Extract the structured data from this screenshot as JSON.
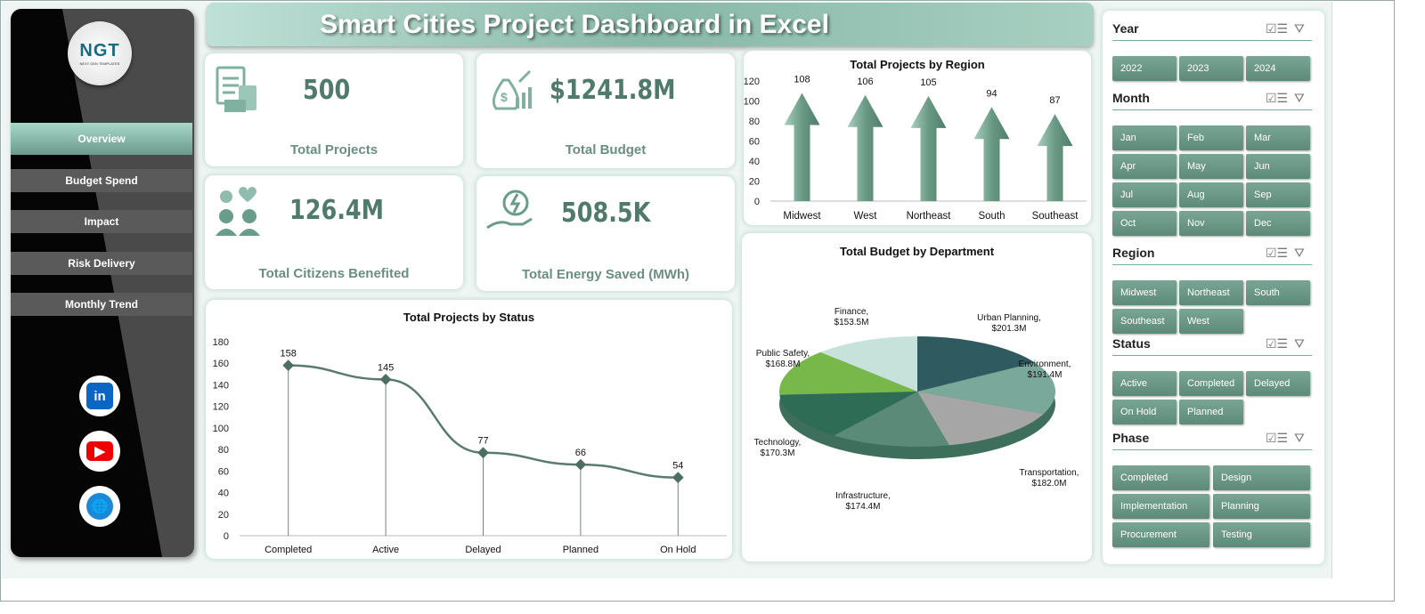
{
  "title": "Smart Cities Project Dashboard in Excel",
  "logo": {
    "text": "NGT",
    "sub": "NEXT GEN TEMPLATES"
  },
  "nav": [
    {
      "label": "Overview",
      "active": true
    },
    {
      "label": "Budget Spend"
    },
    {
      "label": "Impact"
    },
    {
      "label": "Risk Delivery"
    },
    {
      "label": "Monthly Trend"
    }
  ],
  "social": [
    {
      "icon": "linkedin-icon",
      "text": "in",
      "color": "#0a66c2"
    },
    {
      "icon": "youtube-icon",
      "text": "▶",
      "color": "#e00"
    },
    {
      "icon": "globe-icon",
      "text": "🌐",
      "color": "#1a8ad8"
    }
  ],
  "kpis": [
    {
      "value": "500",
      "label": "Total Projects",
      "icon": "clipboard-calculator-icon"
    },
    {
      "value": "$1241.8M",
      "label": "Total Budget",
      "icon": "money-bag-growth-icon"
    },
    {
      "value": "126.4M",
      "label": "Total Citizens Benefited",
      "icon": "citizens-icon"
    },
    {
      "value": "508.5K",
      "label": "Total Energy Saved (MWh)",
      "icon": "energy-hand-icon"
    }
  ],
  "chart_data": [
    {
      "type": "bar",
      "title": "Total Projects by Region",
      "categories": [
        "Midwest",
        "West",
        "Northeast",
        "South",
        "Southeast"
      ],
      "values": [
        108,
        106,
        105,
        94,
        87
      ],
      "ylim": [
        0,
        120
      ],
      "yticks": [
        0,
        20,
        40,
        60,
        80,
        100,
        120
      ],
      "mark": "arrow",
      "color": "#6a9a84"
    },
    {
      "type": "line",
      "title": "Total Projects by Status",
      "categories": [
        "Completed",
        "Active",
        "Delayed",
        "Planned",
        "On Hold"
      ],
      "values": [
        158,
        145,
        77,
        66,
        54
      ],
      "ylim": [
        0,
        180
      ],
      "yticks": [
        0,
        20,
        40,
        60,
        80,
        100,
        120,
        140,
        160,
        180
      ],
      "color": "#5a7a6e"
    },
    {
      "type": "pie",
      "title": "Total Budget by Department",
      "categories": [
        "Urban Planning",
        "Environment",
        "Transportation",
        "Infrastructure",
        "Technology",
        "Public Safety",
        "Finance"
      ],
      "values": [
        201.3,
        191.4,
        182.0,
        174.4,
        170.3,
        168.8,
        153.5
      ],
      "labels": [
        "$201.3M",
        "$191.4M",
        "$182.0M",
        "$174.4M",
        "$170.3M",
        "$168.8M",
        "$153.5M"
      ],
      "colors": [
        "#2f5a60",
        "#7aa89a",
        "#a6a6a6",
        "#5c8a78",
        "#2e6c56",
        "#78b84a",
        "#c6e2da"
      ]
    }
  ],
  "slicers": [
    {
      "title": "Year",
      "cols": 3,
      "items": [
        "2022",
        "2023",
        "2024"
      ]
    },
    {
      "title": "Month",
      "cols": 3,
      "items": [
        "Jan",
        "Feb",
        "Mar",
        "Apr",
        "May",
        "Jun",
        "Jul",
        "Aug",
        "Sep",
        "Oct",
        "Nov",
        "Dec"
      ]
    },
    {
      "title": "Region",
      "cols": 3,
      "items": [
        "Midwest",
        "Northeast",
        "South",
        "Southeast",
        "West"
      ]
    },
    {
      "title": "Status",
      "cols": 3,
      "items": [
        "Active",
        "Completed",
        "Delayed",
        "On Hold",
        "Planned"
      ]
    },
    {
      "title": "Phase",
      "cols": 2,
      "items": [
        "Completed",
        "Design",
        "Implementation",
        "Planning",
        "Procurement",
        "Testing"
      ]
    }
  ]
}
